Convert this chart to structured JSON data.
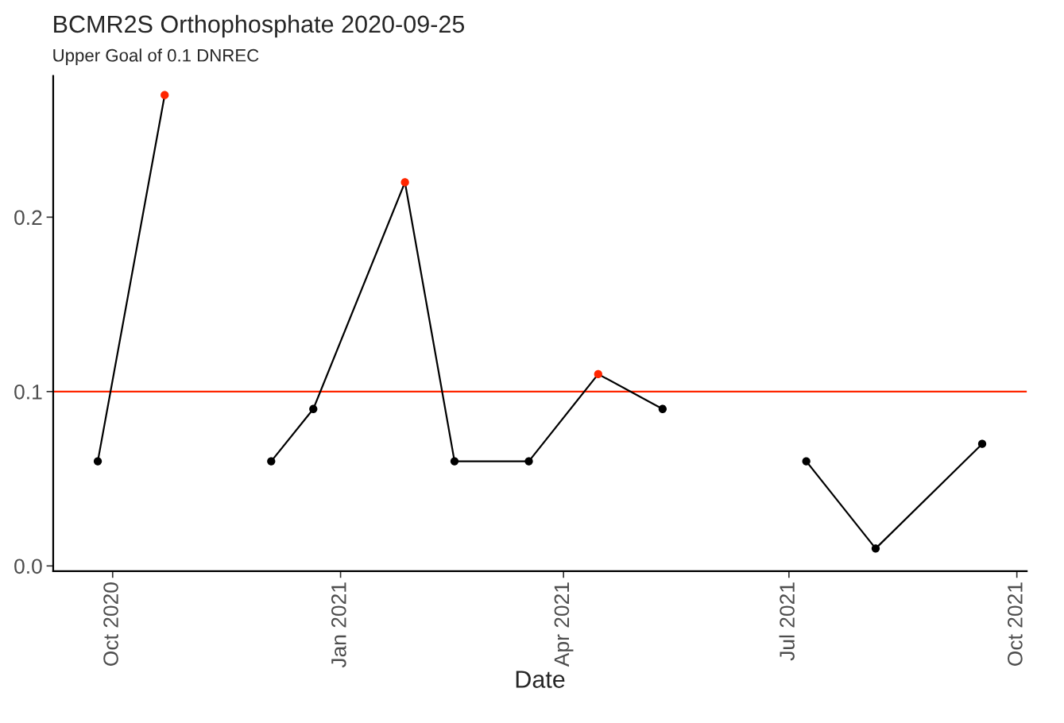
{
  "chart_data": {
    "type": "line",
    "title": "BCMR2S Orthophosphate 2020-09-25",
    "subtitle": "Upper Goal of 0.1 DNREC",
    "xlabel": "Date",
    "series": [
      {
        "color": "#000000",
        "x": [
          "2020-09-25",
          "2020-10-22"
        ],
        "values": [
          0.06,
          0.27
        ],
        "colors": [
          "#000000",
          "#ff2600"
        ]
      },
      {
        "color": "#000000",
        "x": [
          "2020-12-04",
          "2020-12-21",
          "2021-01-27",
          "2021-02-16",
          "2021-03-18",
          "2021-04-15",
          "2021-05-11"
        ],
        "values": [
          0.06,
          0.09,
          0.22,
          0.06,
          0.06,
          0.11,
          0.09
        ],
        "colors": [
          "#000000",
          "#000000",
          "#ff2600",
          "#000000",
          "#000000",
          "#ff2600",
          "#000000"
        ]
      },
      {
        "color": "#000000",
        "x": [
          "2021-07-08",
          "2021-08-05",
          "2021-09-17"
        ],
        "values": [
          0.06,
          0.01,
          0.07
        ],
        "colors": [
          "#000000",
          "#000000",
          "#000000"
        ]
      }
    ],
    "xlim": [
      "2020-09-07",
      "2021-10-05"
    ],
    "ylim": [
      -0.003,
      0.281
    ],
    "xticks": [
      {
        "value": "2020-10-01",
        "label": "Oct 2020"
      },
      {
        "value": "2021-01-01",
        "label": "Jan 2021"
      },
      {
        "value": "2021-04-01",
        "label": "Apr 2021"
      },
      {
        "value": "2021-07-01",
        "label": "Jul 2021"
      },
      {
        "value": "2021-10-01",
        "label": "Oct 2021"
      }
    ],
    "yticks": [
      {
        "value": 0,
        "label": "0.0"
      },
      {
        "value": 0.1,
        "label": "0.1"
      },
      {
        "value": 0.2,
        "label": "0.2"
      }
    ],
    "ref_lines": [
      {
        "axis": "y",
        "value": 0.1,
        "color": "#ff2600"
      }
    ],
    "marker": "circle",
    "line_style": "solid",
    "grid": false,
    "legend": false
  }
}
